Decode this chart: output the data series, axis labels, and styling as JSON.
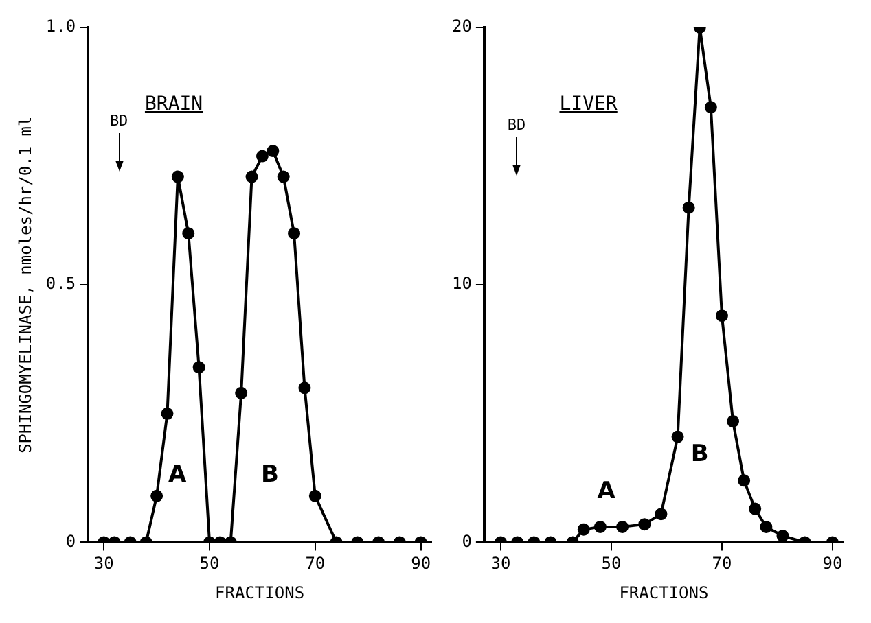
{
  "chart_data": [
    {
      "type": "line",
      "title": "BRAIN",
      "xlabel": "FRACTIONS",
      "ylabel": "SPHINGOMYELINASE, nmoles/hr/0.1 ml",
      "series": [
        {
          "color": "#000000",
          "x": [
            30,
            32,
            35,
            38,
            40,
            42,
            44,
            46,
            48,
            50,
            52,
            54,
            56,
            58,
            60,
            62,
            64,
            66,
            68,
            70,
            74,
            78,
            82,
            86,
            90
          ],
          "values": [
            0,
            0,
            0,
            0,
            0.09,
            0.25,
            0.71,
            0.6,
            0.34,
            0,
            0,
            0,
            0.29,
            0.71,
            0.75,
            0.76,
            0.71,
            0.6,
            0.3,
            0.09,
            0,
            0,
            0,
            0,
            0
          ]
        }
      ],
      "xlim": [
        27,
        92
      ],
      "xticks": [
        30,
        50,
        70,
        90
      ],
      "ylim": [
        0,
        1
      ],
      "yticks": [
        0,
        0.5,
        {
          "value": 1,
          "label": "1.0"
        }
      ],
      "annotations": [
        "BD",
        "A",
        "B"
      ],
      "grid": false,
      "legend": false,
      "marker": "circle",
      "line_style": "solid"
    },
    {
      "type": "line",
      "title": "LIVER",
      "xlabel": "FRACTIONS",
      "series": [
        {
          "color": "#000000",
          "x": [
            30,
            33,
            36,
            39,
            43,
            45,
            48,
            52,
            56,
            59,
            62,
            64,
            66,
            68,
            70,
            72,
            74,
            76,
            78,
            81,
            85,
            90
          ],
          "values": [
            0,
            0,
            0,
            0,
            0,
            0.5,
            0.6,
            0.6,
            0.7,
            1.1,
            4.1,
            13,
            20,
            16.9,
            8.8,
            4.7,
            2.4,
            1.3,
            0.6,
            0.25,
            0,
            0
          ]
        }
      ],
      "xlim": [
        27,
        92
      ],
      "xticks": [
        30,
        50,
        70,
        90
      ],
      "ylim": [
        0,
        20
      ],
      "yticks": [
        0,
        10,
        20
      ],
      "annotations": [
        "BD",
        "A",
        "B"
      ],
      "grid": false,
      "legend": false,
      "marker": "circle",
      "line_style": "solid"
    }
  ]
}
